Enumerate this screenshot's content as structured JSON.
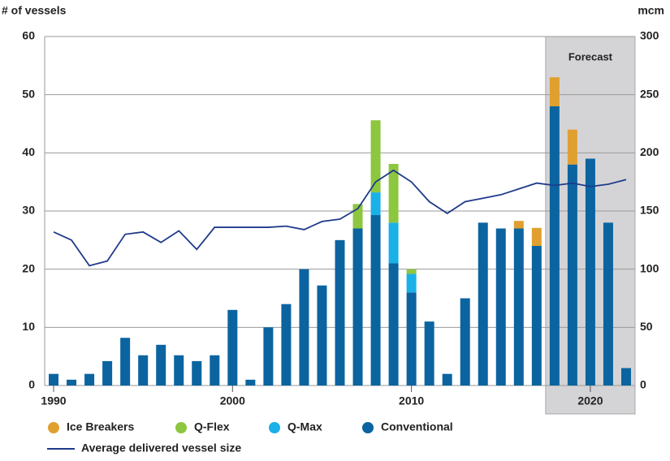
{
  "chart_data": {
    "type": "stacked-bar-line",
    "y_label": "# of vessels",
    "y2_label": "mcm",
    "annotation": "Forecast",
    "shaded_region": [
      2017.5,
      2022.5
    ],
    "x": [
      1990,
      1991,
      1992,
      1993,
      1994,
      1995,
      1996,
      1997,
      1998,
      1999,
      2000,
      2001,
      2002,
      2003,
      2004,
      2005,
      2006,
      2007,
      2008,
      2009,
      2010,
      2011,
      2012,
      2013,
      2014,
      2015,
      2016,
      2017,
      2018,
      2019,
      2020,
      2021,
      2022
    ],
    "xlim": [
      1989.5,
      2022.5
    ],
    "xticks": [
      1990,
      2000,
      2010,
      2020
    ],
    "ylim": [
      0,
      60
    ],
    "yticks": [
      0,
      10,
      20,
      30,
      40,
      50,
      60
    ],
    "y2lim": [
      0,
      300
    ],
    "y2ticks": [
      0,
      50,
      100,
      150,
      200,
      250,
      300
    ],
    "grid": true,
    "series": [
      {
        "name": "Conventional",
        "color": "#0b64a0",
        "values": [
          2,
          1,
          2,
          4.2,
          8.2,
          5.2,
          7,
          5.2,
          4.2,
          5.2,
          13,
          1,
          10,
          14,
          20,
          17.2,
          25,
          27,
          29.3,
          21,
          16,
          11,
          2,
          15,
          28,
          27,
          27,
          24,
          48,
          38,
          39,
          28,
          3
        ]
      },
      {
        "name": "Q-Max",
        "color": "#1ab0e8",
        "values": [
          null,
          null,
          null,
          null,
          null,
          null,
          null,
          null,
          null,
          null,
          null,
          null,
          null,
          null,
          null,
          null,
          null,
          null,
          3.9,
          7,
          3.2,
          null,
          null,
          null,
          null,
          null,
          null,
          null,
          null,
          null,
          null,
          null,
          null
        ]
      },
      {
        "name": "Q-Flex",
        "color": "#8dc63f",
        "values": [
          null,
          null,
          null,
          null,
          null,
          null,
          null,
          null,
          null,
          null,
          null,
          null,
          null,
          null,
          null,
          null,
          null,
          4.2,
          12.4,
          10.1,
          0.8,
          null,
          null,
          null,
          null,
          null,
          null,
          null,
          null,
          null,
          null,
          null,
          null
        ]
      },
      {
        "name": "Ice Breakers",
        "color": "#e0a030",
        "values": [
          null,
          null,
          null,
          null,
          null,
          null,
          null,
          null,
          null,
          null,
          null,
          null,
          null,
          null,
          null,
          null,
          null,
          null,
          null,
          null,
          null,
          null,
          null,
          null,
          null,
          null,
          1.3,
          3.1,
          5,
          6,
          null,
          null,
          null
        ]
      },
      {
        "name": "Average delivered vessel size",
        "color": "#1f3a8a",
        "axis": "y2",
        "line": true,
        "values": [
          132,
          125,
          103,
          107,
          130,
          132,
          123,
          133,
          117,
          136,
          136,
          136,
          136,
          137,
          134,
          141,
          143,
          152,
          175,
          185,
          175,
          158,
          148,
          158,
          161,
          164,
          169,
          174,
          172,
          174,
          171,
          173,
          177
        ]
      }
    ]
  }
}
